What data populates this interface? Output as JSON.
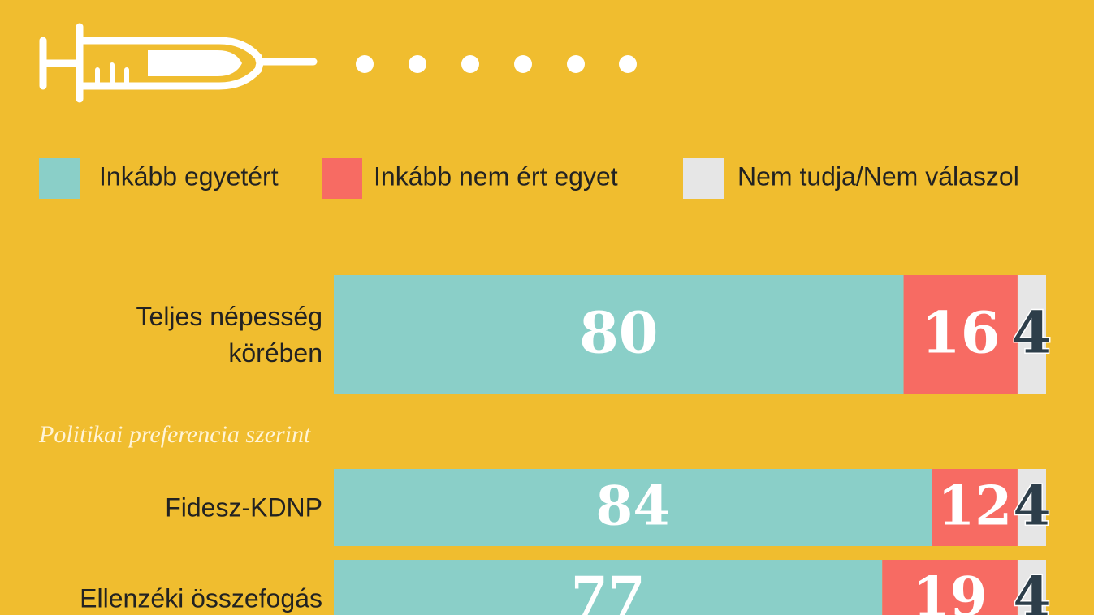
{
  "chart_data": {
    "type": "bar",
    "orientation": "horizontal",
    "stacked": true,
    "annotation": "Politikai preferencia szerint",
    "categories": [
      "Teljes népesség\nkörében",
      "Fidesz-KDNP",
      "Ellenzéki összefogás"
    ],
    "xlim": [
      0,
      100
    ],
    "series": [
      {
        "name": "Inkább egyetért",
        "color": "#8ACFC8",
        "label_color": "#FFFFFF",
        "values": [
          80,
          84,
          77
        ]
      },
      {
        "name": "Inkább nem ért egyet",
        "color": "#F76B63",
        "label_color": "#FFFFFF",
        "values": [
          16,
          12,
          19
        ]
      },
      {
        "name": "Nem tudja/Nem válaszol",
        "color": "#E6E6E6",
        "label_color": "#2D3E4A",
        "values": [
          4,
          4,
          4
        ]
      }
    ]
  }
}
